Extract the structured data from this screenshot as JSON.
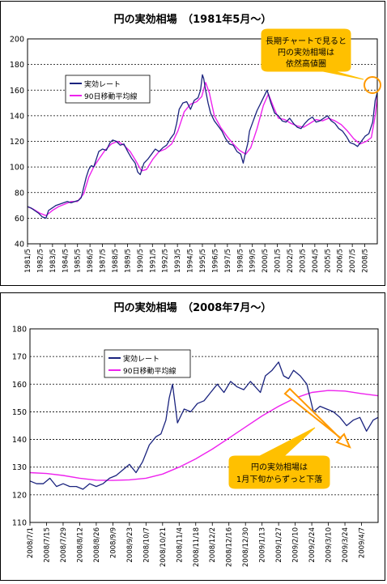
{
  "chart_data": [
    {
      "type": "line",
      "title": "円の実効相場　（1981年5月～）",
      "ylim": [
        40,
        200
      ],
      "yticks": [
        40,
        60,
        80,
        100,
        120,
        140,
        160,
        180,
        200
      ],
      "grid": true,
      "legend_position": "top-left",
      "x_tick_labels": [
        "1981/5",
        "1982/5",
        "1983/5",
        "1984/5",
        "1985/5",
        "1986/5",
        "1987/5",
        "1988/5",
        "1989/5",
        "1990/5",
        "1991/5",
        "1992/5",
        "1993/5",
        "1994/5",
        "1995/5",
        "1996/5",
        "1997/5",
        "1998/5",
        "1999/5",
        "2000/5",
        "2001/5",
        "2002/5",
        "2003/5",
        "2004/5",
        "2005/5",
        "2006/5",
        "2007/5",
        "2008/5"
      ],
      "x_range": [
        1981.33,
        2009.17
      ],
      "series": [
        {
          "name": "実効レート",
          "color": "#1a237e",
          "x": [
            1981.33,
            1981.6,
            1981.9,
            1982.2,
            1982.5,
            1982.8,
            1983.0,
            1983.3,
            1983.6,
            1983.9,
            1984.2,
            1984.5,
            1984.8,
            1985.1,
            1985.4,
            1985.6,
            1985.8,
            1986.0,
            1986.2,
            1986.4,
            1986.6,
            1986.8,
            1987.0,
            1987.3,
            1987.6,
            1987.9,
            1988.1,
            1988.4,
            1988.7,
            1989.0,
            1989.3,
            1989.6,
            1989.9,
            1990.1,
            1990.3,
            1990.6,
            1990.9,
            1991.2,
            1991.5,
            1991.8,
            1992.1,
            1992.4,
            1992.7,
            1993.0,
            1993.2,
            1993.4,
            1993.7,
            1994.0,
            1994.3,
            1994.6,
            1994.9,
            1995.1,
            1995.25,
            1995.35,
            1995.5,
            1995.7,
            1995.9,
            1996.2,
            1996.5,
            1996.8,
            1997.1,
            1997.4,
            1997.7,
            1998.0,
            1998.3,
            1998.5,
            1998.7,
            1998.85,
            1999.0,
            1999.3,
            1999.6,
            1999.9,
            2000.1,
            2000.4,
            2000.7,
            2001.0,
            2001.3,
            2001.6,
            2001.9,
            2002.2,
            2002.5,
            2002.8,
            2003.1,
            2003.4,
            2003.7,
            2004.0,
            2004.3,
            2004.6,
            2004.9,
            2005.2,
            2005.5,
            2005.8,
            2006.1,
            2006.4,
            2006.7,
            2007.0,
            2007.3,
            2007.6,
            2007.9,
            2008.2,
            2008.5,
            2008.8,
            2009.0,
            2009.17
          ],
          "y": [
            69,
            68,
            66,
            64,
            61,
            60,
            66,
            68,
            70,
            71,
            72,
            73,
            72,
            73,
            74,
            76,
            84,
            92,
            98,
            101,
            100,
            106,
            112,
            114,
            113,
            119,
            121,
            120,
            117,
            118,
            112,
            107,
            103,
            96,
            94,
            103,
            106,
            110,
            114,
            112,
            115,
            117,
            122,
            126,
            134,
            145,
            150,
            151,
            145,
            152,
            154,
            160,
            172,
            169,
            160,
            150,
            142,
            136,
            132,
            128,
            122,
            118,
            117,
            112,
            110,
            103,
            112,
            118,
            128,
            136,
            144,
            150,
            154,
            160,
            150,
            142,
            140,
            136,
            135,
            138,
            134,
            131,
            130,
            134,
            137,
            139,
            135,
            136,
            138,
            140,
            136,
            134,
            130,
            128,
            124,
            119,
            118,
            116,
            120,
            124,
            126,
            135,
            152,
            158
          ]
        },
        {
          "name": "90日移動平均線",
          "color": "#ee22ee",
          "x": [
            1981.33,
            1981.8,
            1982.3,
            1982.8,
            1983.3,
            1983.8,
            1984.3,
            1984.8,
            1985.3,
            1985.8,
            1986.2,
            1986.6,
            1987.0,
            1987.5,
            1988.0,
            1988.5,
            1989.0,
            1989.5,
            1990.0,
            1990.4,
            1990.8,
            1991.3,
            1991.8,
            1992.3,
            1992.8,
            1993.3,
            1993.8,
            1994.3,
            1994.8,
            1995.2,
            1995.5,
            1995.8,
            1996.2,
            1996.7,
            1997.2,
            1997.7,
            1998.2,
            1998.7,
            1999.1,
            1999.6,
            2000.1,
            2000.5,
            2000.9,
            2001.3,
            2001.8,
            2002.3,
            2002.8,
            2003.3,
            2003.8,
            2004.3,
            2004.8,
            2005.3,
            2005.8,
            2006.3,
            2006.8,
            2007.3,
            2007.8,
            2008.3,
            2008.7,
            2009.0,
            2009.17
          ],
          "y": [
            69,
            67,
            64,
            62,
            66,
            69,
            71,
            73,
            73,
            79,
            92,
            100,
            106,
            113,
            118,
            120,
            117,
            112,
            104,
            97,
            98,
            106,
            112,
            114,
            118,
            128,
            143,
            149,
            151,
            155,
            166,
            158,
            140,
            131,
            124,
            118,
            113,
            110,
            115,
            130,
            148,
            157,
            147,
            138,
            137,
            134,
            132,
            131,
            134,
            137,
            136,
            138,
            136,
            133,
            128,
            122,
            118,
            120,
            123,
            140,
            155
          ]
        }
      ],
      "annotation": {
        "text_lines": [
          "長期チャートで見ると",
          "円の実効相場は",
          "依然高値圏"
        ],
        "color": "#ffc000"
      }
    },
    {
      "type": "line",
      "title": "円の実効相場　（2008年7月～）",
      "ylim": [
        110,
        180
      ],
      "yticks": [
        110,
        120,
        130,
        140,
        150,
        160,
        170,
        180
      ],
      "grid": true,
      "legend_position": "top-left",
      "x_tick_labels": [
        "2008/7/1",
        "2008/7/15",
        "2008/7/29",
        "2008/8/12",
        "2008/8/26",
        "2008/9/9",
        "2008/9/23",
        "2008/10/7",
        "2008/10/21",
        "2008/11/4",
        "2008/11/18",
        "2008/12/2",
        "2008/12/16",
        "2008/12/30",
        "2009/1/13",
        "2009/1/27",
        "2009/2/10",
        "2009/2/24",
        "2009/3/10",
        "2009/3/24",
        "2009/4/7"
      ],
      "x_range": [
        0,
        21
      ],
      "series": [
        {
          "name": "実効レート",
          "color": "#1a237e",
          "x": [
            0,
            0.4,
            0.8,
            1.2,
            1.6,
            2.0,
            2.4,
            2.8,
            3.2,
            3.6,
            4.0,
            4.4,
            4.8,
            5.2,
            5.6,
            6.0,
            6.4,
            6.8,
            7.2,
            7.6,
            7.9,
            8.2,
            8.4,
            8.6,
            8.9,
            9.3,
            9.7,
            10.1,
            10.5,
            10.9,
            11.3,
            11.7,
            12.1,
            12.5,
            12.9,
            13.3,
            13.6,
            13.9,
            14.2,
            14.6,
            15.0,
            15.3,
            15.6,
            15.9,
            16.3,
            16.7,
            17.1,
            17.5,
            17.9,
            18.3,
            18.7,
            19.1,
            19.5,
            19.9,
            20.3,
            20.7,
            21.0
          ],
          "y": [
            125,
            124,
            124,
            126,
            123,
            124,
            123,
            123,
            122,
            124,
            123,
            124,
            126,
            127,
            129,
            131,
            128,
            132,
            138,
            141,
            142,
            147,
            155,
            160,
            146,
            151,
            150,
            153,
            154,
            157,
            160,
            157,
            161,
            159,
            158,
            161,
            159,
            157,
            163,
            165,
            168,
            163,
            162,
            165,
            163,
            160,
            150,
            152,
            151,
            150,
            148,
            145,
            147,
            148,
            143,
            147,
            148
          ]
        },
        {
          "name": "90日移動平均線",
          "color": "#ee22ee",
          "x": [
            0,
            1,
            2,
            3,
            4,
            5,
            6,
            7,
            8,
            9,
            10,
            11,
            12,
            13,
            14,
            15,
            16,
            17,
            18,
            19,
            20,
            21
          ],
          "y": [
            128,
            127.7,
            127,
            126,
            125.3,
            125.2,
            125.4,
            126,
            127.5,
            130,
            133,
            136.5,
            140.5,
            144.5,
            148.5,
            152,
            155,
            157,
            157.7,
            157.5,
            156.6,
            155.8
          ]
        }
      ],
      "annotation": {
        "text_lines": [
          "円の実効相場は",
          "1月下旬からずっと下落"
        ],
        "color": "#ffc000"
      }
    }
  ]
}
